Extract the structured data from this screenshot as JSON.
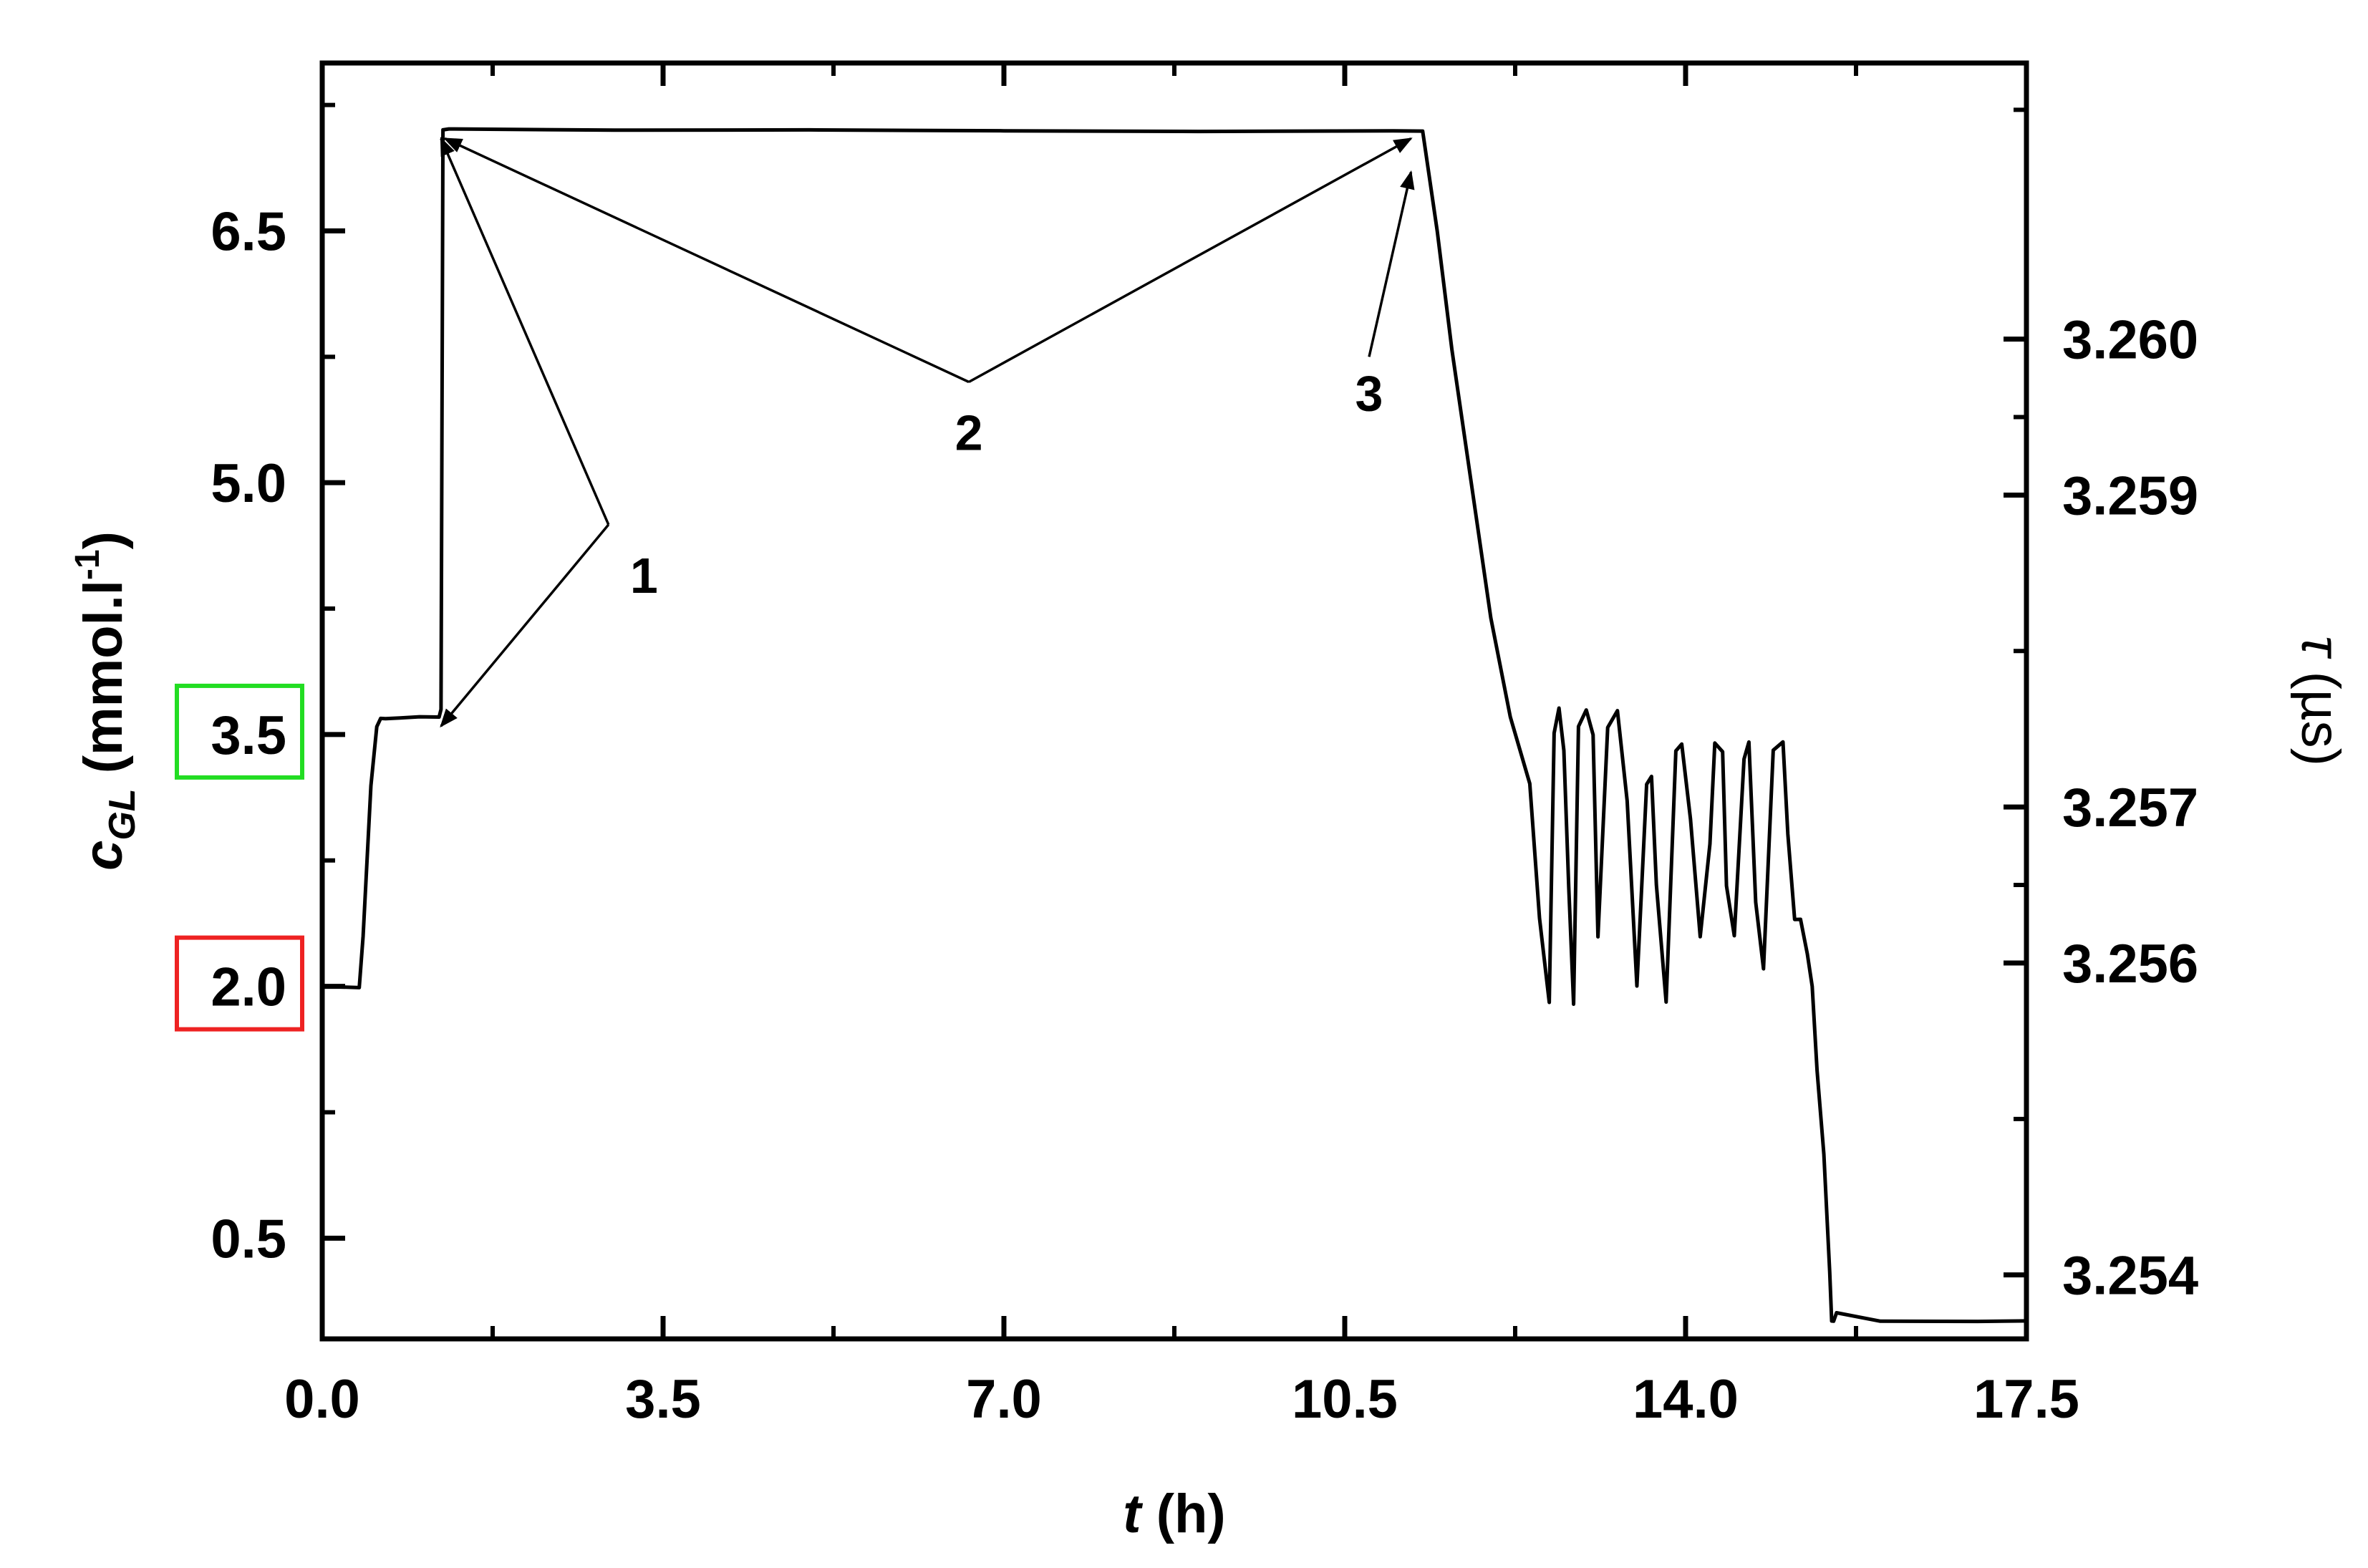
{
  "chart_data": {
    "type": "line",
    "title": "",
    "x_axis": {
      "label_var": "t",
      "label_unit": " (h)",
      "range": [
        0,
        17.5
      ],
      "major_ticks": [
        0,
        3.5,
        7,
        10.5,
        14,
        17.5
      ],
      "tick_labels": [
        "0.0",
        "3.5",
        "7.0",
        "10.5",
        "14.0",
        "17.5"
      ],
      "minor_ticks": [
        1.75,
        5.25,
        8.75,
        12.25,
        15.75
      ]
    },
    "y_left": {
      "label_var": "c",
      "label_sub": "GL",
      "label_unit_pre": " (mmol.l",
      "label_unit_sup": "-1",
      "label_unit_post": ")",
      "range": [
        -0.1,
        7.5
      ],
      "major_ticks": [
        0.5,
        2.0,
        3.5,
        5.0,
        6.5
      ],
      "tick_labels": [
        "0.5",
        "2.0",
        "3.5",
        "5.0",
        "6.5"
      ],
      "minor_ticks": [
        1.25,
        2.75,
        4.25,
        5.75,
        7.25
      ],
      "highlighted_ticks": [
        {
          "label": "3.5",
          "color": "#22dd22"
        },
        {
          "label": "2.0",
          "color": "#ee2222"
        }
      ]
    },
    "y_right": {
      "label_var": "τ",
      "label_unit": " (µs)",
      "range": [
        3.25359,
        3.26177
      ],
      "major_ticks": [
        3.254,
        3.256,
        3.257,
        3.259,
        3.26
      ],
      "tick_labels": [
        "3.254",
        "3.256",
        "3.257",
        "3.259",
        "3.260"
      ]
    },
    "series": [
      {
        "color": "#000000",
        "x": [
          0,
          0.38,
          0.42,
          0.5,
          0.56,
          0.6,
          0.65,
          0.8,
          1.0,
          1.2,
          1.22,
          1.24,
          1.3,
          3.0,
          5.0,
          7.0,
          9.0,
          11.0,
          11.3,
          11.45,
          11.6,
          11.8,
          12.0,
          12.2,
          12.4,
          12.5,
          12.6,
          12.65,
          12.7,
          12.75,
          12.8,
          12.85,
          12.9,
          12.98,
          13.05,
          13.1,
          13.2,
          13.3,
          13.4,
          13.5,
          13.6,
          13.65,
          13.7,
          13.8,
          13.9,
          13.96,
          14.05,
          14.15,
          14.25,
          14.3,
          14.38,
          14.42,
          14.5,
          14.6,
          14.65,
          14.72,
          14.8,
          14.9,
          15.0,
          15.05,
          15.12,
          15.18,
          15.25,
          15.3,
          15.35,
          15.42,
          15.48,
          15.5,
          15.52,
          15.55,
          16.0,
          17.0,
          17.5
        ],
        "y": [
          2.0,
          2.0,
          2.3,
          3.2,
          3.55,
          3.6,
          3.6,
          3.6,
          3.6,
          3.6,
          3.65,
          7.1,
          7.1,
          7.1,
          7.1,
          7.1,
          7.1,
          7.1,
          7.1,
          6.5,
          5.8,
          5.0,
          4.2,
          3.6,
          3.2,
          2.4,
          1.9,
          3.5,
          3.65,
          3.4,
          2.6,
          1.9,
          3.55,
          3.65,
          3.5,
          2.3,
          3.55,
          3.65,
          3.1,
          2.0,
          3.2,
          3.25,
          2.6,
          1.9,
          3.4,
          3.45,
          3.0,
          2.3,
          2.85,
          3.45,
          3.4,
          2.6,
          2.3,
          3.35,
          3.45,
          2.5,
          2.1,
          3.4,
          3.45,
          2.9,
          2.4,
          2.4,
          2.2,
          2.0,
          1.5,
          1.0,
          0.3,
          0.0,
          0.0,
          0.05,
          0.0,
          0.0,
          0.0
        ]
      }
    ],
    "annotations": [
      {
        "label": "1",
        "target_points": [
          [
            1.22,
            7.05
          ],
          [
            1.22,
            3.55
          ]
        ],
        "label_pos": [
          2.94,
          4.75
        ]
      },
      {
        "label": "2",
        "target_points": [
          [
            1.26,
            7.05
          ],
          [
            11.18,
            7.05
          ]
        ],
        "label_pos": [
          6.64,
          5.6
        ]
      },
      {
        "label": "3",
        "target_points": [
          [
            11.18,
            6.85
          ]
        ],
        "label_pos": [
          10.75,
          5.75
        ]
      }
    ]
  }
}
